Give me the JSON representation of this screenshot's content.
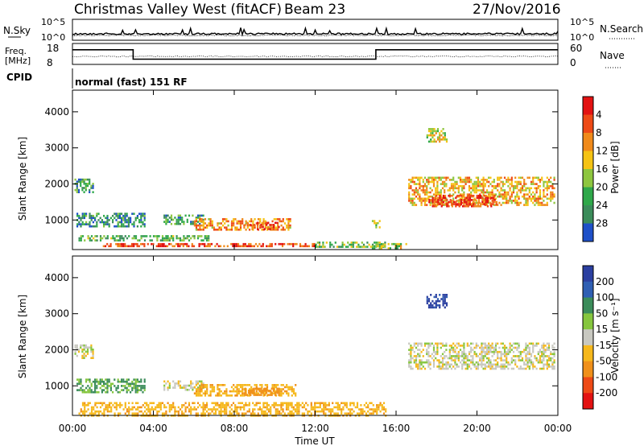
{
  "header": {
    "radar_title": "Christmas Valley West (fitACF)",
    "beam": "Beam 23",
    "date": "27/Nov/2016"
  },
  "strips": {
    "nsky": {
      "label": "N.Sky",
      "ticks": [
        "10^5",
        "10^0"
      ]
    },
    "nsearch": {
      "label": "N.Search",
      "ticks": [
        "10^5",
        "10^0"
      ]
    },
    "freq": {
      "label_line1": "Freq.",
      "label_line2": "[MHz]",
      "ticks": [
        "18",
        "8"
      ]
    },
    "nave": {
      "label": "Nave",
      "ticks": [
        "60",
        "0"
      ]
    },
    "cpid": {
      "label": "CPID",
      "value": "normal (fast) 151 RF"
    },
    "freq_steps": [
      {
        "t_start_h": 0,
        "t_end_h": 3,
        "mhz": 15
      },
      {
        "t_start_h": 3,
        "t_end_h": 15,
        "mhz": 10.5
      },
      {
        "t_start_h": 15,
        "t_end_h": 24,
        "mhz": 15
      }
    ],
    "freq_range_mhz": [
      8,
      18
    ]
  },
  "chart_data": [
    {
      "type": "heatmap",
      "name": "Power",
      "ylabel": "Slant Range [km]",
      "yticks": [
        "1000",
        "2000",
        "3000",
        "4000"
      ],
      "ylim": [
        180,
        4600
      ],
      "xlim_h": [
        0,
        24
      ],
      "colorbar": {
        "label": "Power [dB]",
        "ticks": [
          "4",
          "8",
          "12",
          "16",
          "20",
          "24",
          "28"
        ],
        "range": [
          0,
          32
        ]
      },
      "regions": [
        {
          "t0": 0.1,
          "t1": 1.0,
          "r0": 1750,
          "r1": 2150,
          "level": 0.35
        },
        {
          "t0": 0.2,
          "t1": 3.6,
          "r0": 850,
          "r1": 1200,
          "level": 0.3
        },
        {
          "t0": 0.3,
          "t1": 6.7,
          "r0": 450,
          "r1": 580,
          "level": 0.4
        },
        {
          "t0": 4.5,
          "t1": 6.5,
          "r0": 900,
          "r1": 1150,
          "level": 0.35
        },
        {
          "t0": 6.0,
          "t1": 10.8,
          "r0": 750,
          "r1": 1050,
          "level": 0.7
        },
        {
          "t0": 8.5,
          "t1": 10.2,
          "r0": 750,
          "r1": 950,
          "level": 0.85
        },
        {
          "t0": 1.5,
          "t1": 12.0,
          "r0": 250,
          "r1": 360,
          "level": 0.85
        },
        {
          "t0": 12.0,
          "t1": 15.5,
          "r0": 250,
          "r1": 400,
          "level": 0.45
        },
        {
          "t0": 14.8,
          "t1": 16.5,
          "r0": 230,
          "r1": 360,
          "level": 0.5
        },
        {
          "t0": 16.6,
          "t1": 23.8,
          "r0": 1400,
          "r1": 2200,
          "level": 0.65
        },
        {
          "t0": 17.6,
          "t1": 21.0,
          "r0": 1400,
          "r1": 1700,
          "level": 0.85
        },
        {
          "t0": 17.5,
          "t1": 18.5,
          "r0": 3150,
          "r1": 3550,
          "level": 0.55
        },
        {
          "t0": 14.8,
          "t1": 15.2,
          "r0": 800,
          "r1": 1000,
          "level": 0.55
        }
      ]
    },
    {
      "type": "heatmap",
      "name": "Velocity",
      "ylabel": "Slant Range [km]",
      "yticks": [
        "1000",
        "2000",
        "3000",
        "4000"
      ],
      "ylim": [
        180,
        4600
      ],
      "xlim_h": [
        0,
        24
      ],
      "colorbar": {
        "label": "Velocity [m s⁻¹]",
        "ticks": [
          "200",
          "100",
          "50",
          "15",
          "-15",
          "-50",
          "-100",
          "-200"
        ],
        "range": [
          -250,
          250
        ]
      },
      "regions": [
        {
          "t0": 0.1,
          "t1": 1.0,
          "r0": 1800,
          "r1": 2150,
          "vel": 0
        },
        {
          "t0": 0.2,
          "t1": 3.6,
          "r0": 850,
          "r1": 1200,
          "vel": 30
        },
        {
          "t0": 4.5,
          "t1": 6.5,
          "r0": 900,
          "r1": 1150,
          "vel": 0
        },
        {
          "t0": 6.0,
          "t1": 11.0,
          "r0": 750,
          "r1": 1050,
          "vel": -30
        },
        {
          "t0": 8.5,
          "t1": 10.2,
          "r0": 750,
          "r1": 950,
          "vel": -60
        },
        {
          "t0": 0.3,
          "t1": 15.5,
          "r0": 200,
          "r1": 550,
          "vel": -30
        },
        {
          "t0": 16.6,
          "t1": 23.8,
          "r0": 1450,
          "r1": 2200,
          "vel": 0
        },
        {
          "t0": 17.5,
          "t1": 18.5,
          "r0": 3200,
          "r1": 3550,
          "vel": 150
        }
      ]
    }
  ],
  "xaxis": {
    "label": "Time UT",
    "ticks": [
      "00:00",
      "04:00",
      "08:00",
      "12:00",
      "16:00",
      "20:00",
      "00:00"
    ]
  }
}
